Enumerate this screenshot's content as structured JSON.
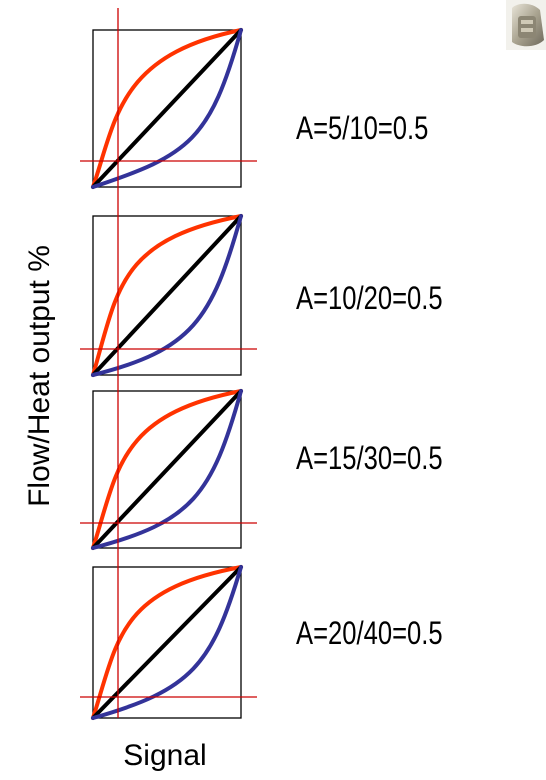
{
  "y_axis_label": "Flow/Heat output %",
  "x_axis_label": "Signal",
  "panels": [
    {
      "label": "A=5/10=0.5"
    },
    {
      "label": "A=10/20=0.5"
    },
    {
      "label": "A=15/30=0.5"
    },
    {
      "label": "A=20/40=0.5"
    }
  ],
  "colors": {
    "concave_curve": "#ff3300",
    "linear_curve": "#000000",
    "convex_curve": "#333399",
    "reference_lines": "#cc0000",
    "frame": "#000000"
  },
  "corner_image": {
    "icon": "valve-photo-icon"
  }
}
